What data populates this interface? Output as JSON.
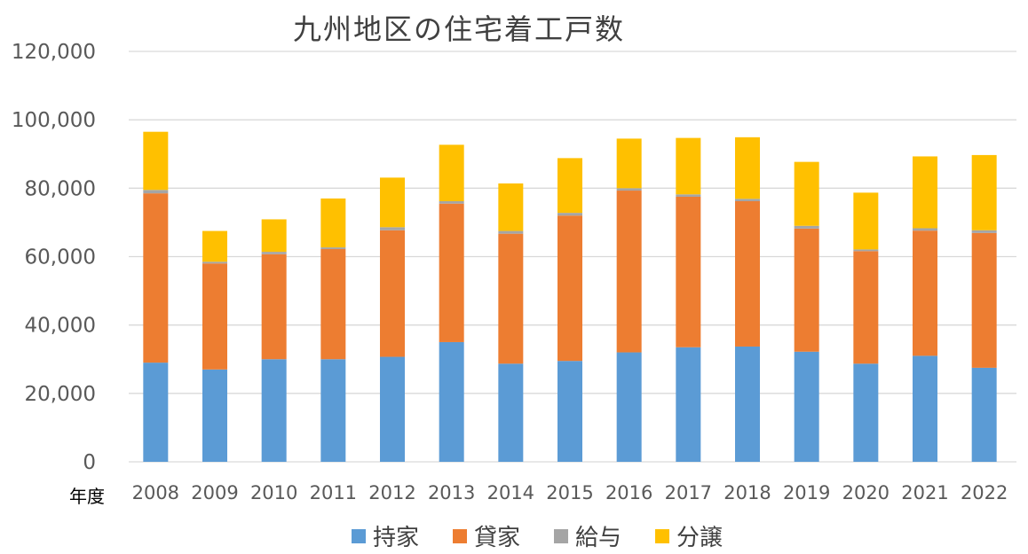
{
  "chart_data": {
    "type": "bar",
    "stacked": true,
    "title": "九州地区の住宅着工戸数",
    "xlabel": "年度",
    "ylabel": "",
    "ylim": [
      0,
      120000
    ],
    "yticks": [
      0,
      20000,
      40000,
      60000,
      80000,
      100000,
      120000
    ],
    "ytick_labels": [
      "0",
      "20,000",
      "40,000",
      "60,000",
      "80,000",
      "100,000",
      "120,000"
    ],
    "grid": true,
    "legend_position": "bottom",
    "categories": [
      "2008",
      "2009",
      "2010",
      "2011",
      "2012",
      "2013",
      "2014",
      "2015",
      "2016",
      "2017",
      "2018",
      "2019",
      "2020",
      "2021",
      "2022"
    ],
    "series": [
      {
        "name": "持家",
        "color": "#5b9bd5",
        "values": [
          29000,
          27000,
          30000,
          30000,
          30700,
          35000,
          28700,
          29500,
          32000,
          33500,
          33700,
          32200,
          28700,
          31000,
          27500
        ]
      },
      {
        "name": "貸家",
        "color": "#ed7d31",
        "values": [
          49500,
          31000,
          30700,
          32200,
          37000,
          40500,
          38000,
          42500,
          47300,
          44000,
          42500,
          36000,
          32900,
          36600,
          39400
        ]
      },
      {
        "name": "給与",
        "color": "#a5a5a5",
        "values": [
          1000,
          500,
          700,
          500,
          900,
          700,
          800,
          800,
          700,
          700,
          700,
          800,
          500,
          700,
          800
        ]
      },
      {
        "name": "分譲",
        "color": "#ffc000",
        "values": [
          17000,
          9000,
          9500,
          14300,
          14500,
          16500,
          13900,
          16000,
          14500,
          16500,
          18000,
          18700,
          16600,
          21000,
          22000
        ]
      }
    ]
  }
}
